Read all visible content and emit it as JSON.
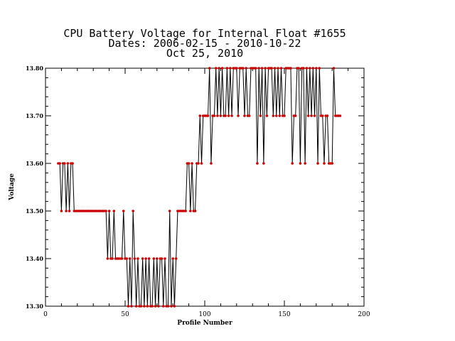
{
  "chart_data": {
    "type": "line",
    "title_lines": [
      "CPU Battery Voltage for Internal Float #1655",
      "Dates:  2006-02-15 -  2010-10-22",
      "Oct 25, 2010"
    ],
    "xlabel": "Profile Number",
    "ylabel": "Voltage",
    "xlim": [
      0,
      200
    ],
    "ylim": [
      13.3,
      13.8
    ],
    "x_ticks": [
      0,
      50,
      100,
      150,
      200
    ],
    "x_tick_labels": [
      "0",
      "50",
      "100",
      "150",
      "200"
    ],
    "y_ticks": [
      13.3,
      13.4,
      13.5,
      13.6,
      13.7,
      13.8
    ],
    "y_tick_labels": [
      "13.30",
      "13.40",
      "13.50",
      "13.60",
      "13.70",
      "13.80"
    ],
    "grid": false,
    "line_color": "#000000",
    "marker_color": "#cc0000",
    "series": [
      {
        "x_start": 8,
        "values": [
          13.6,
          13.6,
          13.5,
          13.6,
          13.6,
          13.5,
          13.6,
          13.5,
          13.6,
          13.6,
          13.5,
          13.5,
          13.5,
          13.5,
          13.5,
          13.5,
          13.5,
          13.5,
          13.5,
          13.5,
          13.5,
          13.5,
          13.5,
          13.5,
          13.5,
          13.5,
          13.5,
          13.5,
          13.5,
          13.5,
          13.5,
          13.4,
          13.5,
          13.4,
          13.4,
          13.5,
          13.4,
          13.4,
          13.4,
          13.4,
          13.4,
          13.5,
          13.4,
          13.4,
          13.3,
          13.4,
          13.3,
          13.5,
          13.4,
          13.3,
          13.4,
          13.3,
          13.3,
          13.4,
          13.3,
          13.4,
          13.3,
          13.4,
          13.3,
          13.3,
          13.4,
          13.3,
          13.4,
          13.3,
          13.4,
          13.4,
          13.3,
          13.4,
          13.3,
          13.3,
          13.5,
          13.3,
          13.4,
          13.3,
          13.4,
          13.5,
          13.5,
          13.5,
          13.5,
          13.5,
          13.5,
          13.6,
          13.6,
          13.5,
          13.6,
          13.5,
          13.5,
          13.6,
          13.6,
          13.7,
          13.6,
          13.7,
          13.7,
          13.7,
          13.7,
          13.8,
          13.6,
          13.7,
          13.7,
          13.8,
          13.7,
          13.8,
          13.7,
          13.8,
          13.7,
          13.7,
          13.8,
          13.7,
          13.8,
          13.7,
          13.8,
          13.8,
          13.8,
          13.7,
          13.8,
          13.8,
          13.8,
          13.7,
          13.8,
          13.7,
          13.7,
          13.8,
          13.8,
          13.8,
          13.8,
          13.6,
          13.8,
          13.7,
          13.8,
          13.6,
          13.8,
          13.7,
          13.8,
          13.8,
          13.8,
          13.7,
          13.8,
          13.7,
          13.8,
          13.7,
          13.8,
          13.7,
          13.7,
          13.8,
          13.8,
          13.8,
          13.8,
          13.6,
          13.7,
          13.7,
          13.8,
          13.8,
          13.6,
          13.8,
          13.8,
          13.6,
          13.8,
          13.7,
          13.8,
          13.7,
          13.8,
          13.7,
          13.8,
          13.6,
          13.8,
          13.7,
          13.7,
          13.6,
          13.7,
          13.7,
          13.6,
          13.6,
          13.6,
          13.8,
          13.7,
          13.7,
          13.7,
          13.7
        ]
      }
    ]
  }
}
